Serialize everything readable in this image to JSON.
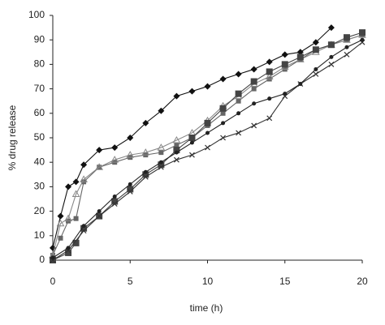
{
  "chart_data": {
    "type": "line",
    "x_label": "time (h)",
    "y_label": "% drug release",
    "xlim": [
      0,
      20
    ],
    "xticks": [
      0,
      5,
      10,
      15,
      20
    ],
    "ylim": [
      0,
      100
    ],
    "yticks": [
      0,
      10,
      20,
      30,
      40,
      50,
      60,
      70,
      80,
      90,
      100
    ],
    "series": [
      {
        "color": "#111111",
        "marker": "diamond",
        "x": [
          0,
          0.5,
          1,
          1.5,
          2,
          3,
          4,
          5,
          6,
          7,
          8,
          9,
          10,
          11,
          12,
          13,
          14,
          15,
          16,
          17,
          18
        ],
        "values": [
          5,
          18,
          30,
          32,
          39,
          45,
          46,
          50,
          56,
          61,
          67,
          69,
          71,
          74,
          76,
          78,
          81,
          84,
          85,
          89,
          95
        ]
      },
      {
        "color": "#666666",
        "marker": "square",
        "x": [
          0,
          0.5,
          1,
          1.5,
          2,
          3,
          4,
          5,
          6,
          7,
          8,
          9,
          10,
          11,
          12,
          13,
          14,
          15,
          16,
          17,
          18,
          19,
          20
        ],
        "values": [
          2,
          9,
          16,
          17,
          32,
          38,
          40,
          42,
          43,
          44,
          47,
          50,
          55,
          60,
          65,
          70,
          74,
          78,
          82,
          86,
          88,
          90,
          92
        ]
      },
      {
        "color": "#888888",
        "marker": "triangle",
        "x": [
          0,
          0.5,
          1,
          1.5,
          2,
          3,
          4,
          5,
          6,
          7,
          8,
          9,
          10,
          11,
          12,
          13,
          14,
          15,
          16,
          17,
          18,
          19,
          20
        ],
        "values": [
          2,
          15,
          17,
          27,
          33,
          38,
          41,
          43,
          44,
          46,
          49,
          52,
          57,
          63,
          67,
          72,
          75,
          79,
          82,
          85,
          88,
          90,
          92
        ]
      },
      {
        "color": "#444444",
        "marker": "bigsquare",
        "x": [
          0,
          1,
          1.5,
          2,
          3,
          4,
          5,
          6,
          7,
          8,
          9,
          10,
          11,
          12,
          13,
          14,
          15,
          16,
          17,
          18,
          19,
          20
        ],
        "values": [
          0,
          3,
          7,
          13,
          18,
          24,
          29,
          35,
          39,
          45,
          50,
          56,
          62,
          68,
          73,
          77,
          80,
          83,
          86,
          88,
          91,
          93
        ]
      },
      {
        "color": "#333333",
        "marker": "cross",
        "x": [
          0,
          1,
          2,
          3,
          4,
          5,
          6,
          7,
          8,
          9,
          10,
          11,
          12,
          13,
          14,
          15,
          16,
          17,
          18,
          19,
          20
        ],
        "values": [
          0,
          4,
          12,
          18,
          23,
          28,
          34,
          38,
          41,
          43,
          46,
          50,
          52,
          55,
          58,
          67,
          72,
          76,
          80,
          84,
          89
        ]
      },
      {
        "color": "#222222",
        "marker": "dot",
        "x": [
          0,
          1,
          2,
          3,
          4,
          5,
          6,
          7,
          8,
          9,
          10,
          11,
          12,
          13,
          14,
          15,
          16,
          17,
          18,
          19,
          20
        ],
        "values": [
          1,
          5,
          14,
          20,
          26,
          31,
          36,
          40,
          44,
          48,
          52,
          56,
          60,
          64,
          66,
          68,
          72,
          78,
          83,
          87,
          90
        ]
      }
    ]
  }
}
